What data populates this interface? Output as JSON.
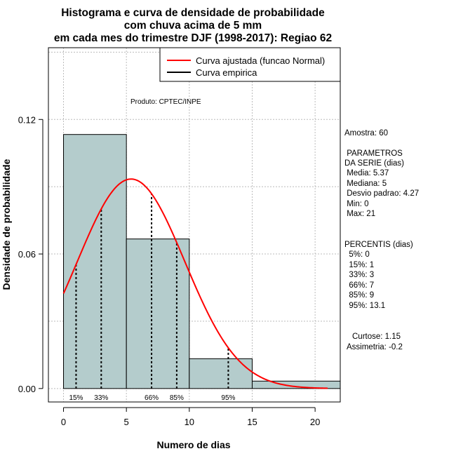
{
  "chart_data": {
    "type": "bar",
    "title_lines": [
      "Histograma e curva de densidade de probabilidade",
      "com chuva acima de 5 mm",
      "em cada mes do trimestre DJF (1998-2017): Regiao 62"
    ],
    "xlabel": "Numero de dias",
    "ylabel": "Densidade de probabilidade",
    "xlim": [
      -1.2,
      22
    ],
    "ylim": [
      -0.006,
      0.152
    ],
    "x_ticks": [
      0,
      5,
      10,
      15,
      20
    ],
    "y_ticks": [
      0.0,
      0.06,
      0.12
    ],
    "y_tick_labels": [
      "0.00",
      "0.06",
      "0.12"
    ],
    "grid": true,
    "histogram": {
      "bins": [
        [
          0,
          5
        ],
        [
          5,
          10
        ],
        [
          10,
          15
        ],
        [
          15,
          22
        ]
      ],
      "density": [
        0.1133,
        0.0667,
        0.0133,
        0.0033
      ],
      "fill_color": "#b4cccc"
    },
    "normal_curve": {
      "name": "Curva ajustada (funcao Normal)",
      "mean": 5.37,
      "sd": 4.27,
      "x_range": [
        0,
        21
      ],
      "color": "#ff0000"
    },
    "percentile_lines": [
      {
        "label": "15%",
        "x": 1
      },
      {
        "label": "33%",
        "x": 3
      },
      {
        "label": "66%",
        "x": 7
      },
      {
        "label": "85%",
        "x": 9
      },
      {
        "label": "95%",
        "x": 13.1
      }
    ],
    "legend": {
      "position": "top-right",
      "entries": [
        {
          "label": "Curva ajustada (funcao Normal)",
          "color": "#ff0000"
        },
        {
          "label": "Curva empirica",
          "color": "#000000"
        }
      ]
    },
    "annotation": "Produto: CPTEC/INPE"
  },
  "side_panel": {
    "sample": "Amostra: 60",
    "params_title_1": " PARAMETROS",
    "params_title_2": "DA SERIE (dias)",
    "params": [
      " Media: 5.37",
      " Mediana: 5",
      " Desvio padrao: 4.27",
      " Min: 0",
      " Max: 21"
    ],
    "percentis_title": "PERCENTIS (dias)",
    "percentis": [
      "  5%: 0",
      "  15%: 1",
      "  33%: 3",
      "  66%: 7",
      "  85%: 9",
      "  95%: 13.1"
    ],
    "curtose": "Curtose: 1.15",
    "assimetria": "Assimetria: -0.2"
  }
}
